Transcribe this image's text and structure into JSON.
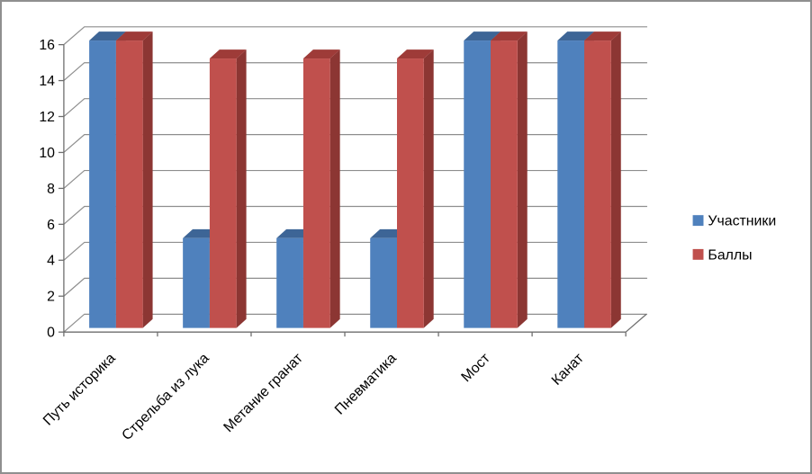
{
  "chart_data": {
    "type": "bar",
    "style": "3d-clustered",
    "title": "",
    "xlabel": "",
    "ylabel": "",
    "categories": [
      "Путь историка",
      "Стрельба из лука",
      "Метание гранат",
      "Пневматика",
      "Мост",
      "Канат"
    ],
    "series": [
      {
        "name": "Участники",
        "values": [
          16,
          5,
          5,
          5,
          16,
          16
        ],
        "color": "#4F81BD",
        "color_top": "#3D6596",
        "color_side": "#2E527C"
      },
      {
        "name": "Баллы",
        "values": [
          16,
          15,
          15,
          15,
          16,
          16
        ],
        "color": "#C0504D",
        "color_top": "#9E3B38",
        "color_side": "#8C3633"
      }
    ],
    "ylim": [
      0,
      16
    ],
    "yticks": [
      0,
      2,
      4,
      6,
      8,
      10,
      12,
      14,
      16
    ],
    "grid": true,
    "legend_position": "right"
  },
  "colors": {
    "background": "#FFFFFF",
    "border": "#8F8F8F",
    "gridline": "#8E8E8E",
    "axis": "#6E6E6E",
    "label": "#000000"
  }
}
